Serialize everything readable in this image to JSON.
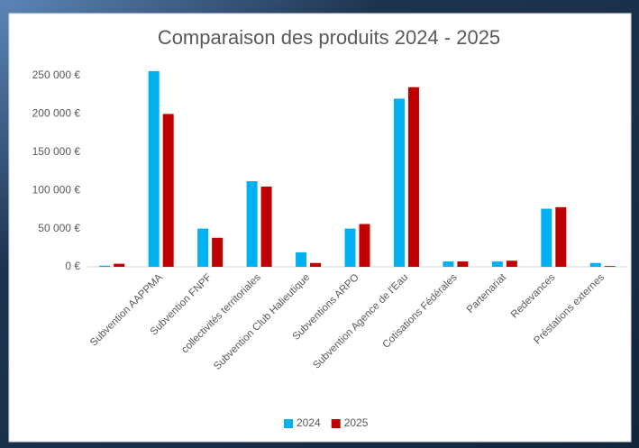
{
  "chart_data": {
    "type": "bar",
    "title": "Comparaison des produits 2024 - 2025",
    "categories": [
      null,
      "Subvention AAPPMA",
      "Subvention FNPF",
      "collectivités territoriales",
      "Subvention Club Halieutique",
      "Subventions ARPO",
      "Subvention Agence de l'Eau",
      "Cotisations Fédérales",
      "Partenariat",
      "Redevances",
      "Préstations externes"
    ],
    "series": [
      {
        "name": "2024",
        "color": "#00b0f0",
        "values": [
          1500,
          256000,
          50000,
          112000,
          19000,
          50000,
          220000,
          7000,
          7000,
          76000,
          5000
        ]
      },
      {
        "name": "2025",
        "color": "#c00000",
        "values": [
          4000,
          200000,
          38000,
          105000,
          5000,
          56000,
          235000,
          7000,
          8000,
          78000,
          1000
        ]
      }
    ],
    "ylim": [
      0,
      250000
    ],
    "yticks": [
      {
        "value": 0,
        "label": "0 €"
      },
      {
        "value": 50000,
        "label": "50 000 €"
      },
      {
        "value": 100000,
        "label": "100 000 €"
      },
      {
        "value": 150000,
        "label": "150 000 €"
      },
      {
        "value": 200000,
        "label": "200 000 €"
      },
      {
        "value": 250000,
        "label": "250 000 €"
      }
    ],
    "grid": false,
    "legend": "bottom"
  }
}
